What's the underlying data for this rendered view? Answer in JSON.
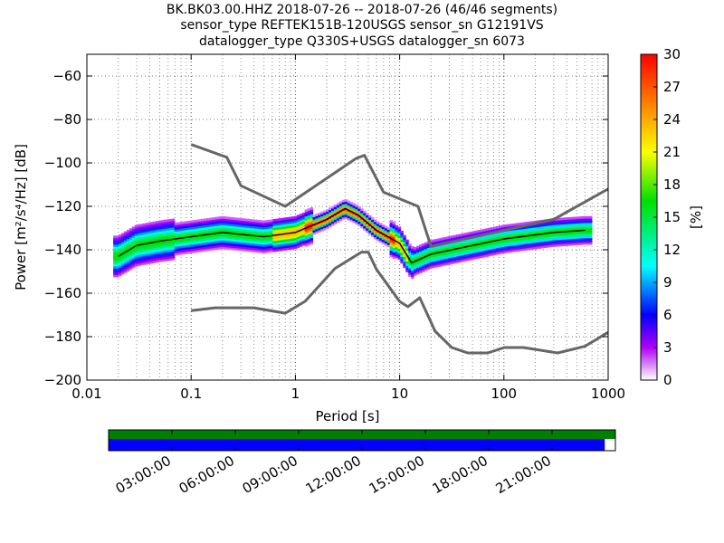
{
  "chart_data": {
    "type": "heatmap",
    "title_lines": [
      "BK.BK03.00.HHZ   2018-07-26 -- 2018-07-26  (46/46 segments)",
      "sensor_type REFTEK151B-120USGS sensor_sn G12191VS",
      "datalogger_type Q330S+USGS datalogger_sn 6073"
    ],
    "xlabel": "Period [s]",
    "ylabel": "Power [m²/s⁴/Hz] [dB]",
    "x_scale": "log",
    "xlim": [
      0.01,
      1000
    ],
    "ylim": [
      -200,
      -50
    ],
    "x_ticks": [
      0.01,
      0.1,
      1,
      10,
      100,
      1000
    ],
    "x_tick_labels": [
      "0.01",
      "0.1",
      "1",
      "10",
      "100",
      "1000"
    ],
    "y_ticks": [
      -200,
      -180,
      -160,
      -140,
      -120,
      -100,
      -80,
      -60
    ],
    "y_tick_labels": [
      "−200",
      "−180",
      "−160",
      "−140",
      "−120",
      "−100",
      "−80",
      "−60"
    ],
    "grid": true,
    "colorbar": {
      "label": "[%]",
      "range": [
        0,
        30
      ],
      "ticks": [
        0,
        3,
        6,
        9,
        12,
        15,
        18,
        21,
        24,
        27,
        30
      ],
      "tick_labels": [
        "0",
        "3",
        "6",
        "9",
        "12",
        "15",
        "18",
        "21",
        "24",
        "27",
        "30"
      ]
    },
    "noise_model_high": {
      "x": [
        0.1,
        0.22,
        0.3,
        0.8,
        3.8,
        4.6,
        7.0,
        15.0,
        20.0,
        300.0,
        1000.0
      ],
      "y": [
        -91.5,
        -97.4,
        -110.5,
        -120.0,
        -98.0,
        -96.5,
        -113.5,
        -120.0,
        -138.5,
        -126.0,
        -112.0
      ]
    },
    "noise_model_low": {
      "x": [
        0.1,
        0.17,
        0.4,
        0.8,
        1.24,
        2.4,
        4.3,
        5.0,
        6.0,
        10.0,
        12.0,
        15.6,
        21.9,
        31.6,
        45.0,
        70.0,
        101.0,
        154.0,
        328.0,
        600.0,
        1000.0
      ],
      "y": [
        -168.0,
        -166.7,
        -166.7,
        -169.2,
        -163.7,
        -148.6,
        -141.1,
        -141.1,
        -149.0,
        -163.8,
        -166.2,
        -162.1,
        -177.5,
        -185.0,
        -187.5,
        -187.5,
        -185.0,
        -185.0,
        -187.5,
        -184.4,
        -178.0
      ]
    },
    "mode_curve": {
      "x": [
        0.02,
        0.03,
        0.05,
        0.1,
        0.2,
        0.5,
        1.0,
        2.0,
        3.0,
        4.0,
        6.0,
        10.0,
        13.0,
        20.0,
        50.0,
        100.0,
        300.0,
        600.0
      ],
      "y": [
        -143,
        -138,
        -136,
        -134,
        -132,
        -134,
        -132,
        -126,
        -121,
        -124,
        -131,
        -137,
        -146,
        -142,
        -138,
        -135,
        -132,
        -131
      ]
    },
    "timeline": {
      "tick_labels": [
        "03:00:00",
        "06:00:00",
        "09:00:00",
        "12:00:00",
        "15:00:00",
        "18:00:00",
        "21:00:00"
      ],
      "tick_hours": [
        3,
        6,
        9,
        12,
        15,
        18,
        21
      ],
      "range_hours": [
        0,
        24
      ],
      "data_coverage_fraction": 1.0,
      "psd_coverage_fraction": 0.979,
      "colors": {
        "data": "#008000",
        "psd": "#0000ff"
      }
    },
    "colors": {
      "noise_model": "#666666",
      "mode_curve": "#000000",
      "grid": "#000000"
    }
  }
}
